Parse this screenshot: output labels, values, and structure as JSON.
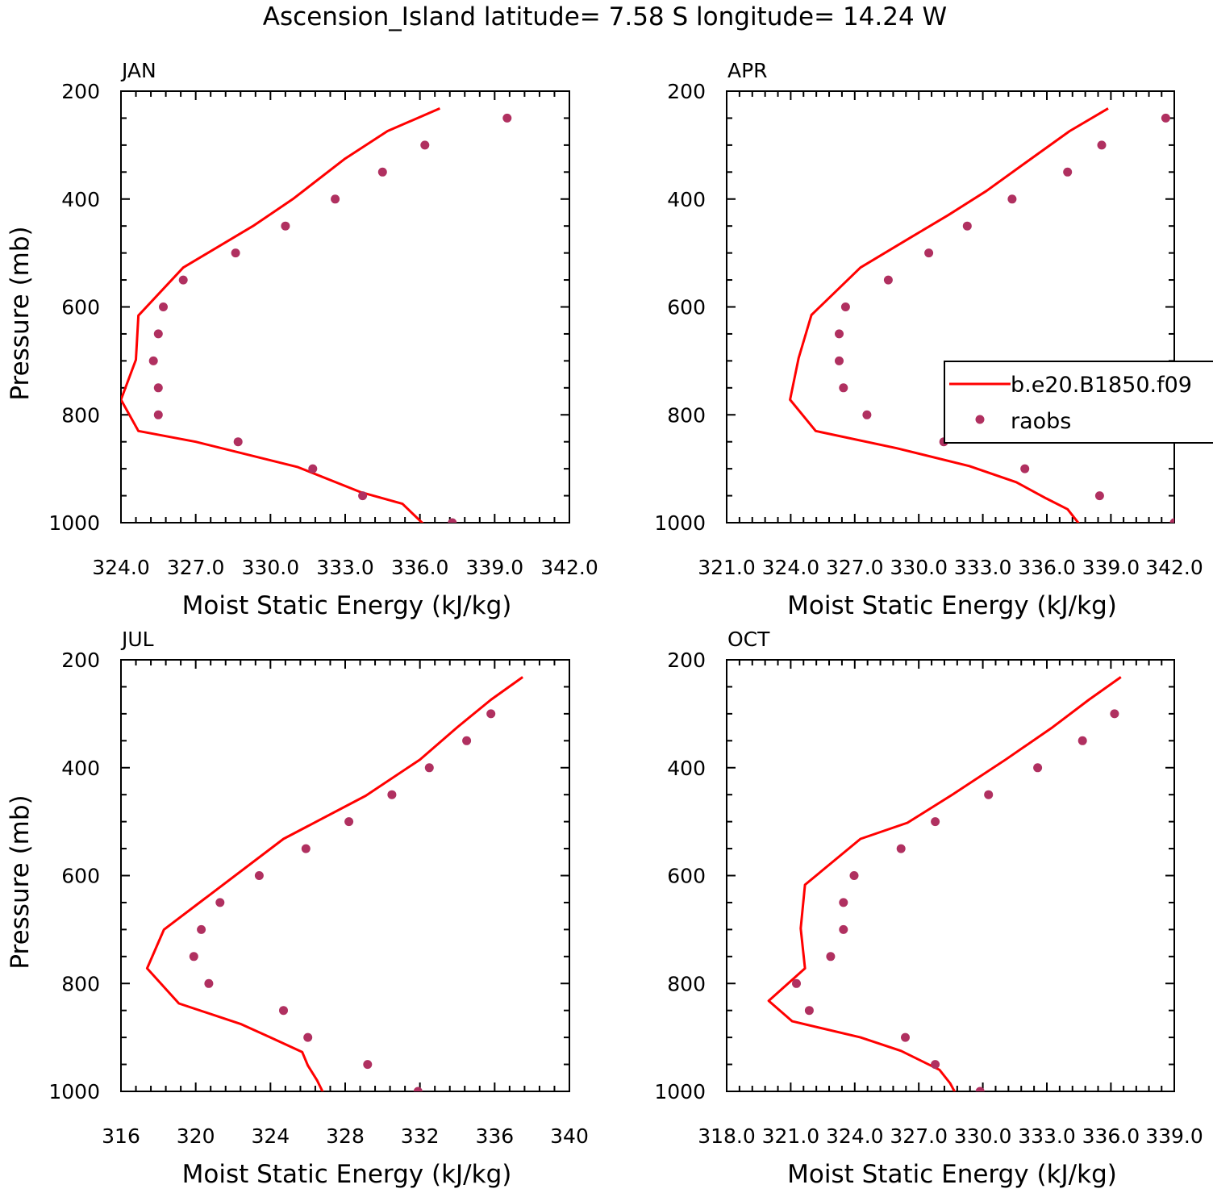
{
  "figure": {
    "title": "Ascension_Island  latitude= 7.58 S longitude= 14.24 W"
  },
  "legend": {
    "model_label": "b.e20.B1850.f09",
    "obs_label": "raobs",
    "placement": "right of APR panel",
    "line_color": "#ff0000",
    "marker_color": "#b03060"
  },
  "chart_data": [
    {
      "panel": "JAN",
      "type": "line",
      "title": "JAN",
      "xlabel": "Moist Static Energy (kJ/kg)",
      "ylabel": "Pressure (mb)",
      "xlim": [
        324.0,
        342.0
      ],
      "ylim": [
        1000,
        200
      ],
      "xticks": [
        324,
        327,
        330,
        333,
        336,
        339,
        342
      ],
      "xtick_labels": [
        "324.0",
        "327.0",
        "330.0",
        "333.0",
        "336.0",
        "339.0",
        "342.0"
      ],
      "yticks": [
        200,
        400,
        600,
        800,
        1000
      ],
      "ytick_labels": [
        "200",
        "400",
        "600",
        "800",
        "1000"
      ],
      "series": [
        {
          "name": "b.e20.B1850.f09",
          "kind": "line",
          "points": [
            [
              336.8,
              232
            ],
            [
              334.7,
              274
            ],
            [
              333.0,
              325
            ],
            [
              330.9,
              400
            ],
            [
              329.3,
              450
            ],
            [
              326.5,
              527
            ],
            [
              324.7,
              616
            ],
            [
              324.6,
              698
            ],
            [
              324.0,
              772
            ],
            [
              324.7,
              830
            ],
            [
              327.0,
              850
            ],
            [
              331.1,
              897
            ],
            [
              333.6,
              943
            ],
            [
              335.3,
              965
            ],
            [
              336.2,
              1005
            ]
          ]
        },
        {
          "name": "raobs",
          "kind": "scatter",
          "points": [
            [
              339.5,
              250
            ],
            [
              336.2,
              300
            ],
            [
              334.5,
              350
            ],
            [
              332.6,
              400
            ],
            [
              330.6,
              450
            ],
            [
              328.6,
              500
            ],
            [
              326.5,
              550
            ],
            [
              325.7,
              600
            ],
            [
              325.5,
              650
            ],
            [
              325.3,
              700
            ],
            [
              325.5,
              750
            ],
            [
              325.5,
              800
            ],
            [
              328.7,
              850
            ],
            [
              331.7,
              900
            ],
            [
              333.7,
              950
            ],
            [
              337.3,
              1000
            ]
          ]
        }
      ]
    },
    {
      "panel": "APR",
      "type": "line",
      "title": "APR",
      "xlabel": "Moist Static Energy (kJ/kg)",
      "ylabel": "",
      "xlim": [
        321.03,
        342.0
      ],
      "ylim": [
        1000,
        200
      ],
      "xticks": [
        321.03,
        324.03,
        327.03,
        330.03,
        333.03,
        336.03,
        339.03,
        342.0
      ],
      "xtick_labels": [
        "321.0",
        "324.0",
        "327.0",
        "330.0",
        "333.0",
        "336.0",
        "339.0",
        "342.0"
      ],
      "yticks": [
        200,
        400,
        600,
        800,
        1000
      ],
      "ytick_labels": [
        "200",
        "400",
        "600",
        "800",
        "1000"
      ],
      "series": [
        {
          "name": "b.e20.B1850.f09",
          "kind": "line",
          "points": [
            [
              338.9,
              232
            ],
            [
              337.1,
              274
            ],
            [
              335.3,
              325
            ],
            [
              333.2,
              385
            ],
            [
              331.4,
              430
            ],
            [
              329.7,
              470
            ],
            [
              327.3,
              527
            ],
            [
              325.0,
              615
            ],
            [
              324.4,
              695
            ],
            [
              324.0,
              772
            ],
            [
              325.2,
              830
            ],
            [
              329.0,
              862
            ],
            [
              332.4,
              895
            ],
            [
              334.6,
              925
            ],
            [
              336.0,
              955
            ],
            [
              337.0,
              975
            ],
            [
              337.3,
              990
            ],
            [
              337.6,
              1005
            ]
          ]
        },
        {
          "name": "raobs",
          "kind": "scatter",
          "points": [
            [
              341.6,
              250
            ],
            [
              338.6,
              300
            ],
            [
              337.0,
              350
            ],
            [
              334.4,
              400
            ],
            [
              332.3,
              450
            ],
            [
              330.5,
              500
            ],
            [
              328.6,
              550
            ],
            [
              326.6,
              600
            ],
            [
              326.3,
              650
            ],
            [
              326.3,
              700
            ],
            [
              326.5,
              750
            ],
            [
              327.6,
              800
            ],
            [
              331.2,
              850
            ],
            [
              335.0,
              900
            ],
            [
              338.5,
              950
            ],
            [
              342.0,
              1000
            ]
          ]
        }
      ]
    },
    {
      "panel": "JUL",
      "type": "line",
      "title": "JUL",
      "xlabel": "Moist Static Energy (kJ/kg)",
      "ylabel": "Pressure (mb)",
      "xlim": [
        316,
        340
      ],
      "ylim": [
        1000,
        200
      ],
      "xticks": [
        316,
        320,
        324,
        328,
        332,
        336,
        340
      ],
      "xtick_labels": [
        "316",
        "320",
        "324",
        "328",
        "332",
        "336",
        "340"
      ],
      "yticks": [
        200,
        400,
        600,
        800,
        1000
      ],
      "ytick_labels": [
        "200",
        "400",
        "600",
        "800",
        "1000"
      ],
      "series": [
        {
          "name": "b.e20.B1850.f09",
          "kind": "line",
          "points": [
            [
              337.5,
              232
            ],
            [
              335.8,
              274
            ],
            [
              334.0,
              325
            ],
            [
              332.0,
              385
            ],
            [
              329.1,
              452
            ],
            [
              324.7,
              532
            ],
            [
              318.3,
              700
            ],
            [
              317.4,
              772
            ],
            [
              319.1,
              837
            ],
            [
              322.4,
              875
            ],
            [
              324.0,
              900
            ],
            [
              325.7,
              927
            ],
            [
              326.0,
              952
            ],
            [
              326.5,
              980
            ],
            [
              326.9,
              1008
            ]
          ]
        },
        {
          "name": "raobs",
          "kind": "scatter",
          "points": [
            [
              335.8,
              300
            ],
            [
              334.5,
              350
            ],
            [
              332.5,
              400
            ],
            [
              330.5,
              450
            ],
            [
              328.2,
              500
            ],
            [
              325.9,
              550
            ],
            [
              323.4,
              600
            ],
            [
              321.3,
              650
            ],
            [
              320.3,
              700
            ],
            [
              319.9,
              750
            ],
            [
              320.7,
              800
            ],
            [
              324.7,
              850
            ],
            [
              326.0,
              900
            ],
            [
              329.2,
              950
            ],
            [
              331.9,
              1000
            ]
          ]
        }
      ]
    },
    {
      "panel": "OCT",
      "type": "line",
      "title": "OCT",
      "xlabel": "Moist Static Energy (kJ/kg)",
      "ylabel": "",
      "xlim": [
        318.03,
        339.0
      ],
      "ylim": [
        1000,
        200
      ],
      "xticks": [
        318.03,
        321.03,
        324.03,
        327.03,
        330.03,
        333.03,
        336.03,
        339.0
      ],
      "xtick_labels": [
        "318.0",
        "321.0",
        "324.0",
        "327.0",
        "330.0",
        "333.0",
        "336.0",
        "339.0"
      ],
      "yticks": [
        200,
        400,
        600,
        800,
        1000
      ],
      "ytick_labels": [
        "200",
        "400",
        "600",
        "800",
        "1000"
      ],
      "series": [
        {
          "name": "b.e20.B1850.f09",
          "kind": "line",
          "points": [
            [
              336.5,
              232
            ],
            [
              335.0,
              274
            ],
            [
              333.3,
              325
            ],
            [
              331.1,
              385
            ],
            [
              328.6,
              450
            ],
            [
              326.5,
              502
            ],
            [
              324.3,
              532
            ],
            [
              321.7,
              617
            ],
            [
              321.5,
              698
            ],
            [
              321.7,
              772
            ],
            [
              320.0,
              832
            ],
            [
              321.1,
              870
            ],
            [
              324.3,
              900
            ],
            [
              326.2,
              925
            ],
            [
              328.0,
              960
            ],
            [
              328.5,
              985
            ],
            [
              328.8,
              1007
            ]
          ]
        },
        {
          "name": "raobs",
          "kind": "scatter",
          "points": [
            [
              336.2,
              300
            ],
            [
              334.7,
              350
            ],
            [
              332.6,
              400
            ],
            [
              330.3,
              450
            ],
            [
              327.8,
              500
            ],
            [
              326.2,
              550
            ],
            [
              324.0,
              600
            ],
            [
              323.5,
              650
            ],
            [
              323.5,
              700
            ],
            [
              322.9,
              750
            ],
            [
              321.3,
              800
            ],
            [
              321.9,
              850
            ],
            [
              326.4,
              900
            ],
            [
              327.8,
              950
            ],
            [
              329.9,
              1000
            ]
          ]
        }
      ]
    }
  ]
}
